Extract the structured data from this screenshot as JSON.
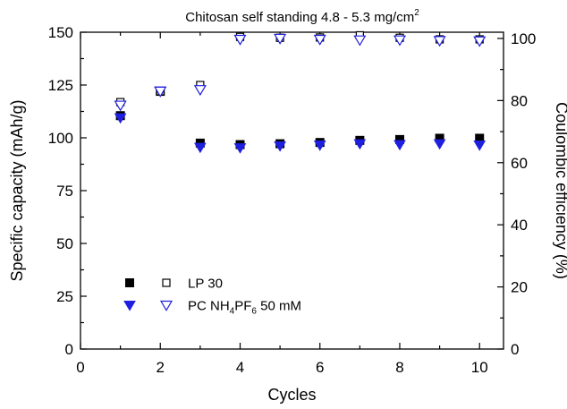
{
  "chart_data": {
    "type": "scatter",
    "title": "Chitosan self standing 4.8 - 5.3 mg/cm",
    "title_superscript": "2",
    "xlabel": "Cycles",
    "ylabel": "Specific capacity (mAh/g)",
    "y2label": "Coulombic efficiency (%)",
    "xlim": [
      0,
      10.6
    ],
    "ylim": [
      0,
      150
    ],
    "y2lim": [
      0,
      102
    ],
    "x_ticks": [
      "0",
      "2",
      "4",
      "6",
      "8",
      "10"
    ],
    "y_ticks": [
      "0",
      "25",
      "50",
      "75",
      "100",
      "125",
      "150"
    ],
    "y2_ticks": [
      "0",
      "20",
      "40",
      "60",
      "80",
      "100"
    ],
    "grid": false,
    "legend_placement": "bottom-left",
    "series": [
      {
        "name": "LP 30",
        "quantity": "specific capacity",
        "marker": "filled-square",
        "color": "#000000",
        "x": [
          1,
          2,
          3,
          4,
          5,
          6,
          7,
          8,
          9,
          10
        ],
        "y": [
          110.5,
          122.0,
          97.5,
          96.8,
          97.2,
          97.8,
          98.8,
          99.2,
          99.8,
          99.8
        ]
      },
      {
        "name": "LP 30",
        "quantity": "coulombic efficiency",
        "marker": "open-square",
        "color": "#000000",
        "x": [
          1,
          2,
          3,
          4,
          5,
          6,
          7,
          8,
          9,
          10
        ],
        "y": [
          79.5,
          83.0,
          85.0,
          100.5,
          100.2,
          100.3,
          101.0,
          100.2,
          99.7,
          99.7
        ]
      },
      {
        "name": "PC  NH4PF6 50 mM",
        "quantity": "specific capacity",
        "marker": "filled-triangle-down",
        "color": "#1f1fe0",
        "x": [
          1,
          2,
          3,
          4,
          5,
          6,
          7,
          8,
          9,
          10
        ],
        "y": [
          109.5,
          122.2,
          95.5,
          95.3,
          96.2,
          96.6,
          97.2,
          96.8,
          97.2,
          96.6
        ]
      },
      {
        "name": "PC  NH4PF6 50 mM",
        "quantity": "coulombic efficiency",
        "marker": "open-triangle-down",
        "color": "#1f1fe0",
        "x": [
          1,
          2,
          3,
          4,
          5,
          6,
          7,
          8,
          9,
          10
        ],
        "y": [
          78.5,
          83.0,
          83.5,
          99.7,
          100.0,
          99.7,
          99.5,
          99.5,
          99.3,
          99.2
        ]
      }
    ],
    "legend": [
      {
        "label": "LP 30",
        "color": "#000000",
        "markers": [
          "filled-square",
          "open-square"
        ]
      },
      {
        "label_parts": [
          "PC  NH",
          "4",
          "PF",
          "6",
          " 50 mM"
        ],
        "color": "#1f1fe0",
        "markers": [
          "filled-triangle-down",
          "open-triangle-down"
        ]
      }
    ]
  }
}
